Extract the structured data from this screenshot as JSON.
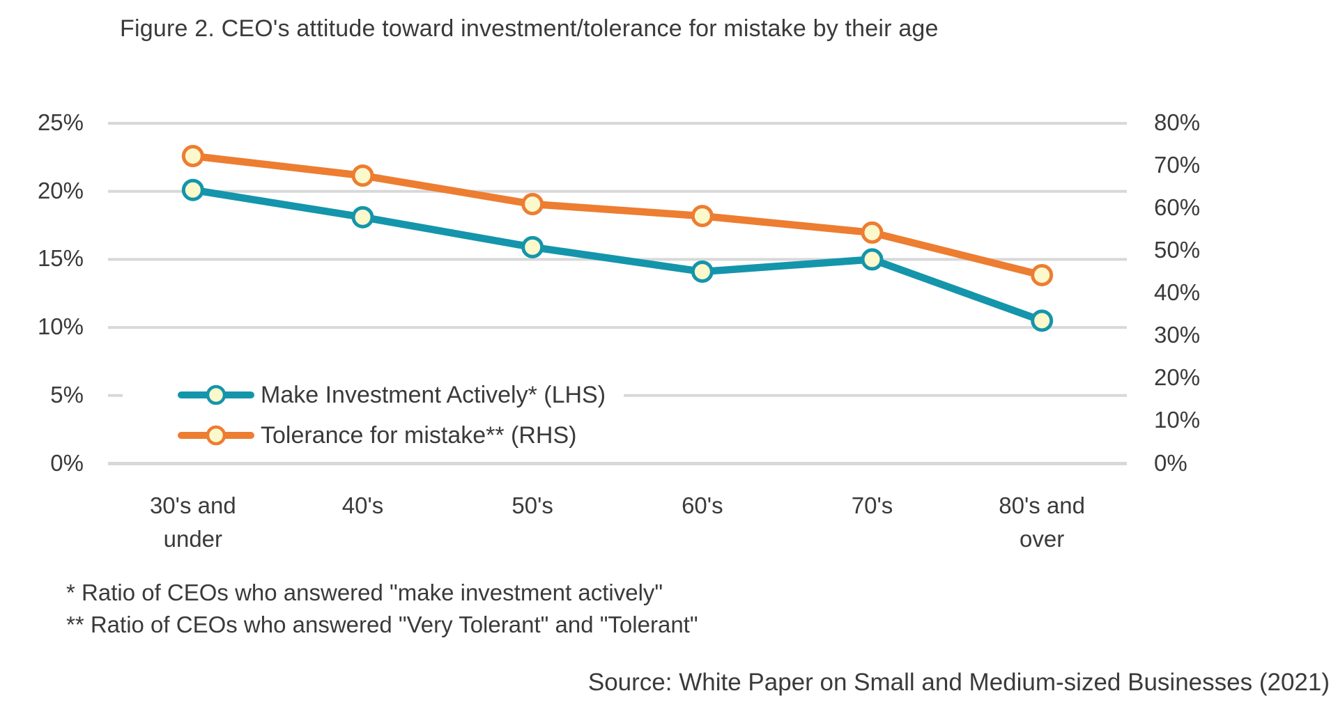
{
  "title": "Figure 2. CEO's attitude toward investment/tolerance for mistake by their age",
  "footnotes": {
    "line1": "* Ratio of CEOs who answered \"make investment actively\"",
    "line2": "** Ratio of CEOs who answered \"Very Tolerant\" and \"Tolerant\""
  },
  "source": "Source: White Paper on Small and Medium-sized Businesses (2021)",
  "colors": {
    "teal_series": "#1495AB",
    "orange_series": "#ED7D31",
    "marker_fill": "#FBF8CC",
    "gridline": "#D8D8D8",
    "text": "#3A3A3A",
    "background": "#FFFFFF"
  },
  "chart_data": {
    "type": "line",
    "title": "Figure 2. CEO's attitude toward investment/tolerance for mistake by their age",
    "categories": [
      "30's and under",
      "40's",
      "50's",
      "60's",
      "70's",
      "80's and over"
    ],
    "category_labels": [
      "30's and\nunder",
      "40's",
      "50's",
      "60's",
      "70's",
      "80's and\nover"
    ],
    "series": [
      {
        "name": "Make Investment Actively* (LHS)",
        "axis": "left",
        "color": "#1495AB",
        "values": [
          20.1,
          18.1,
          15.9,
          14.1,
          15.0,
          10.5
        ]
      },
      {
        "name": "Tolerance for mistake** (RHS)",
        "axis": "right",
        "color": "#ED7D31",
        "values": [
          72.3,
          67.7,
          61.0,
          58.2,
          54.3,
          44.3
        ]
      }
    ],
    "left_axis": {
      "min": 0,
      "max": 25,
      "tick_values": [
        0,
        5,
        10,
        15,
        20,
        25
      ],
      "tick_labels": [
        "0%",
        "5%",
        "10%",
        "15%",
        "20%",
        "25%"
      ]
    },
    "right_axis": {
      "min": 0,
      "max": 80,
      "tick_values": [
        0,
        10,
        20,
        30,
        40,
        50,
        60,
        70,
        80
      ],
      "tick_labels": [
        "0%",
        "10%",
        "20%",
        "30%",
        "40%",
        "50%",
        "60%",
        "70%",
        "80%"
      ]
    },
    "grid": "horizontal",
    "legend_position": "inside-bottom-left",
    "marker_fill": "#FBF8CC"
  }
}
